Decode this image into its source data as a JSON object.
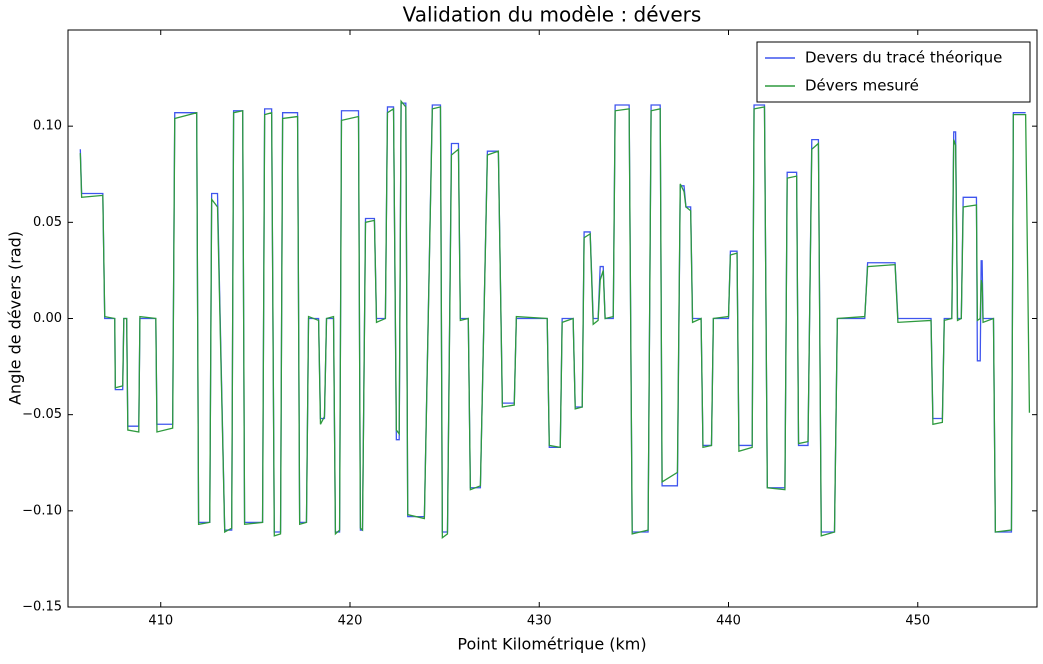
{
  "chart_data": {
    "type": "line",
    "title": "Validation du modèle : dévers",
    "x_label": "Point Kilométrique (km)",
    "y_label": "Angle de dévers (rad)",
    "xlim": [
      405.1,
      456.3
    ],
    "ylim": [
      -0.15,
      0.15
    ],
    "xticks": [
      410,
      420,
      430,
      440,
      450
    ],
    "yticks": [
      {
        "value": -0.15,
        "label": "−0.15"
      },
      {
        "value": -0.1,
        "label": "−0.10"
      },
      {
        "value": -0.05,
        "label": "−0.05"
      },
      {
        "value": 0,
        "label": "0.00"
      },
      {
        "value": 0.05,
        "label": "0.05"
      },
      {
        "value": 0.1,
        "label": "0.10"
      }
    ],
    "legend": "upper right",
    "x": [
      405.75,
      405.82,
      406.94,
      407.04,
      407.57,
      407.6,
      407.99,
      408.05,
      408.2,
      408.26,
      408.84,
      408.9,
      409.74,
      409.8,
      410.63,
      410.74,
      411.9,
      412.0,
      412.59,
      412.69,
      413.0,
      413.38,
      413.75,
      413.85,
      414.33,
      414.43,
      415.38,
      415.49,
      415.86,
      416.0,
      416.33,
      416.44,
      417.23,
      417.34,
      417.7,
      417.81,
      418.34,
      418.44,
      418.65,
      418.76,
      419.13,
      419.23,
      419.45,
      419.55,
      420.45,
      420.55,
      420.66,
      420.82,
      421.29,
      421.4,
      421.87,
      421.98,
      422.3,
      422.45,
      422.6,
      422.7,
      422.95,
      423.05,
      423.93,
      424.35,
      424.78,
      424.88,
      425.15,
      425.36,
      425.73,
      425.83,
      426.25,
      426.36,
      426.89,
      427.26,
      427.84,
      428.05,
      428.68,
      428.79,
      430.42,
      430.53,
      431.11,
      431.21,
      431.79,
      431.9,
      432.27,
      432.37,
      432.69,
      432.85,
      433.11,
      433.22,
      433.38,
      433.48,
      433.91,
      434.01,
      434.75,
      434.91,
      435.75,
      435.91,
      436.39,
      436.49,
      437.3,
      437.45,
      437.65,
      437.75,
      438.0,
      438.1,
      438.55,
      438.65,
      439.1,
      439.2,
      440.0,
      440.1,
      440.45,
      440.55,
      441.25,
      441.35,
      441.9,
      442.05,
      442.98,
      443.1,
      443.6,
      443.7,
      444.2,
      444.4,
      444.75,
      444.9,
      445.6,
      445.75,
      447.2,
      447.35,
      448.8,
      448.95,
      450.7,
      450.8,
      451.3,
      451.4,
      451.8,
      451.9,
      452.0,
      452.1,
      452.3,
      452.4,
      453.1,
      453.15,
      453.3,
      453.35,
      453.4,
      453.45,
      454.0,
      454.1,
      454.95,
      455.05,
      455.7,
      455.9
    ],
    "series": [
      {
        "name": "Devers du tracé théorique",
        "color": "#3f55ee",
        "values": [
          0.088,
          0.065,
          0.065,
          0,
          0,
          -0.037,
          -0.037,
          0,
          0,
          -0.056,
          -0.056,
          0,
          0,
          -0.055,
          -0.055,
          0.107,
          0.107,
          -0.106,
          -0.106,
          0.065,
          0.065,
          -0.11,
          -0.11,
          0.108,
          0.108,
          -0.106,
          -0.106,
          0.109,
          0.109,
          -0.111,
          -0.111,
          0.107,
          0.107,
          -0.106,
          -0.106,
          0,
          0,
          -0.052,
          -0.052,
          0,
          0,
          -0.111,
          -0.111,
          0.108,
          0.108,
          -0.11,
          -0.11,
          0.052,
          0.052,
          0,
          0,
          0.11,
          0.11,
          -0.063,
          -0.063,
          0.112,
          0.112,
          -0.103,
          -0.103,
          0.111,
          0.111,
          -0.111,
          -0.111,
          0.091,
          0.091,
          0,
          0,
          -0.088,
          -0.088,
          0.087,
          0.087,
          -0.044,
          -0.044,
          0,
          0,
          -0.067,
          -0.067,
          0,
          0,
          -0.046,
          -0.046,
          0.045,
          0.045,
          0,
          0,
          0.027,
          0.027,
          0,
          0,
          0.111,
          0.111,
          -0.111,
          -0.111,
          0.111,
          0.111,
          -0.087,
          -0.087,
          0.069,
          0.069,
          0.058,
          0.058,
          0,
          0,
          -0.066,
          -0.066,
          0,
          0,
          0.035,
          0.035,
          -0.066,
          -0.066,
          0.111,
          0.111,
          -0.088,
          -0.088,
          0.076,
          0.076,
          -0.066,
          -0.066,
          0.093,
          0.093,
          -0.111,
          -0.111,
          0,
          0,
          0.029,
          0.029,
          0,
          0,
          -0.052,
          -0.052,
          0,
          0,
          0.097,
          0.097,
          0,
          0,
          0.063,
          0.063,
          -0.022,
          -0.022,
          0.03,
          0.03,
          0,
          0,
          -0.111,
          -0.111,
          0.107,
          0.107,
          null
        ]
      },
      {
        "name": "Dévers mesuré",
        "color": "#2e9a3e",
        "values": [
          0.086,
          0.063,
          0.064,
          0.001,
          0,
          -0.036,
          -0.035,
          0,
          0,
          -0.058,
          -0.059,
          0.001,
          0,
          -0.059,
          -0.057,
          0.104,
          0.107,
          -0.107,
          -0.106,
          0.062,
          0.058,
          -0.111,
          -0.109,
          0.107,
          0.108,
          -0.107,
          -0.106,
          0.106,
          0.107,
          -0.113,
          -0.112,
          0.104,
          0.105,
          -0.107,
          -0.106,
          0.001,
          -0.001,
          -0.055,
          -0.051,
          0,
          0.001,
          -0.112,
          -0.11,
          0.103,
          0.105,
          -0.109,
          -0.11,
          0.05,
          0.051,
          -0.002,
          0,
          0.107,
          0.109,
          -0.058,
          -0.06,
          0.113,
          0.11,
          -0.102,
          -0.104,
          0.109,
          0.11,
          -0.114,
          -0.112,
          0.085,
          0.088,
          -0.001,
          0,
          -0.089,
          -0.087,
          0.085,
          0.087,
          -0.046,
          -0.045,
          0.001,
          0,
          -0.066,
          -0.067,
          -0.002,
          0,
          -0.047,
          -0.046,
          0.042,
          0.044,
          -0.003,
          -0.001,
          0.02,
          0.025,
          0,
          0.001,
          0.108,
          0.109,
          -0.112,
          -0.11,
          0.108,
          0.109,
          -0.085,
          -0.08,
          0.07,
          0.066,
          0.058,
          0.056,
          -0.002,
          0,
          -0.067,
          -0.066,
          0,
          0.001,
          0.033,
          0.034,
          -0.069,
          -0.067,
          0.109,
          0.11,
          -0.088,
          -0.089,
          0.073,
          0.074,
          -0.065,
          -0.064,
          0.088,
          0.091,
          -0.113,
          -0.111,
          0,
          0.001,
          0.027,
          0.028,
          -0.002,
          -0.001,
          -0.055,
          -0.054,
          -0.001,
          0,
          0.093,
          0.09,
          -0.001,
          0,
          0.058,
          0.059,
          -0.001,
          0,
          0.02,
          0.018,
          -0.002,
          0,
          -0.111,
          -0.11,
          0.106,
          0.106,
          -0.049
        ]
      }
    ]
  }
}
